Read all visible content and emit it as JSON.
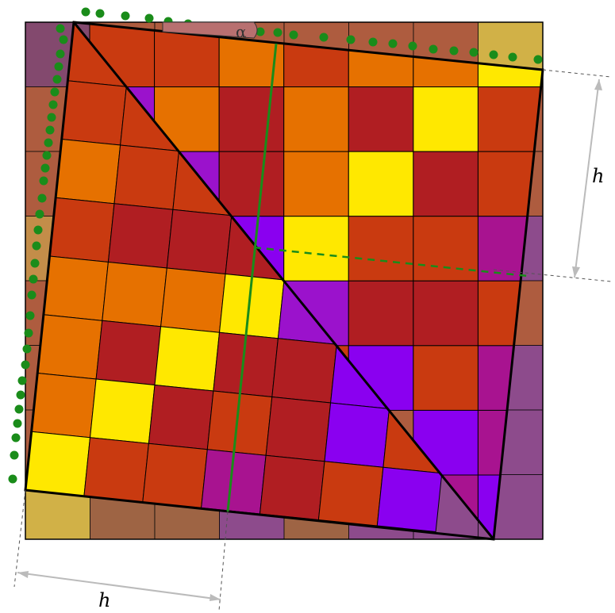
{
  "labels": {
    "angle": "α",
    "height_right": "h",
    "height_bottom": "h"
  },
  "colors": {
    "palette": {
      "a": "#6E2A55",
      "b": "#8E4A24",
      "c": "#A0401E",
      "d": "#B97A2A",
      "e": "#C9A428",
      "f": "#C93A10",
      "g": "#E67100",
      "h": "#B01E22",
      "i": "#FFE800",
      "j": "#9B12CC",
      "k": "#8A00F0",
      "l": "#A81390",
      "m": "#7A2C78",
      "n": "#6A34B8"
    },
    "dots": "#1A8C1A",
    "guide_line": "#1A8C1A",
    "dimension": "#BBBBBB",
    "angle_badge": "#B87070"
  },
  "base_grid": [
    [
      "a",
      "c",
      "c",
      "c",
      "c",
      "c",
      "c",
      "e"
    ],
    [
      "c",
      "c",
      "c",
      "c",
      "c",
      "c",
      "c",
      "c"
    ],
    [
      "c",
      "c",
      "c",
      "c",
      "c",
      "c",
      "c",
      "c"
    ],
    [
      "d",
      "c",
      "c",
      "c",
      "c",
      "c",
      "c",
      "m"
    ],
    [
      "c",
      "c",
      "c",
      "c",
      "c",
      "c",
      "c",
      "c"
    ],
    [
      "c",
      "c",
      "c",
      "c",
      "c",
      "c",
      "c",
      "m"
    ],
    [
      "c",
      "c",
      "c",
      "c",
      "c",
      "c",
      "c",
      "m"
    ],
    [
      "c",
      "c",
      "c",
      "c",
      "c",
      "c",
      "c",
      "n"
    ],
    [
      "e",
      "b",
      "b",
      "m",
      "b",
      "m",
      "m",
      "m"
    ]
  ],
  "upper_grid": [
    [
      "f",
      "f",
      "g",
      "f",
      "g",
      "g",
      "i"
    ],
    [
      "j",
      "g",
      "h",
      "g",
      "h",
      "i",
      "f"
    ],
    [
      "x",
      "j",
      "h",
      "g",
      "i",
      "h",
      "f"
    ],
    [
      "x",
      "x",
      "k",
      "i",
      "f",
      "f",
      "l"
    ],
    [
      "x",
      "x",
      "x",
      "j",
      "h",
      "h",
      "f"
    ],
    [
      "x",
      "x",
      "x",
      "f",
      "k",
      "f",
      "l"
    ],
    [
      "x",
      "x",
      "x",
      "x",
      "x",
      "k",
      "l"
    ],
    [
      "x",
      "x",
      "x",
      "x",
      "x",
      "l",
      "k"
    ]
  ],
  "lower_grid": [
    [
      "f",
      "x",
      "x",
      "x",
      "x",
      "x",
      "x",
      "x"
    ],
    [
      "f",
      "f",
      "j",
      "x",
      "x",
      "x",
      "x",
      "x"
    ],
    [
      "g",
      "f",
      "f",
      "g",
      "x",
      "x",
      "x",
      "x"
    ],
    [
      "f",
      "h",
      "h",
      "h",
      "k",
      "x",
      "x",
      "x"
    ],
    [
      "g",
      "g",
      "g",
      "i",
      "j",
      "x",
      "x",
      "x"
    ],
    [
      "g",
      "h",
      "i",
      "h",
      "h",
      "k",
      "x",
      "x"
    ],
    [
      "g",
      "i",
      "h",
      "f",
      "h",
      "k",
      "f",
      "x"
    ],
    [
      "i",
      "f",
      "f",
      "l",
      "h",
      "f",
      "k",
      "x"
    ],
    [
      "x",
      "x",
      "x",
      "x",
      "f",
      "l",
      "l",
      "k"
    ]
  ]
}
